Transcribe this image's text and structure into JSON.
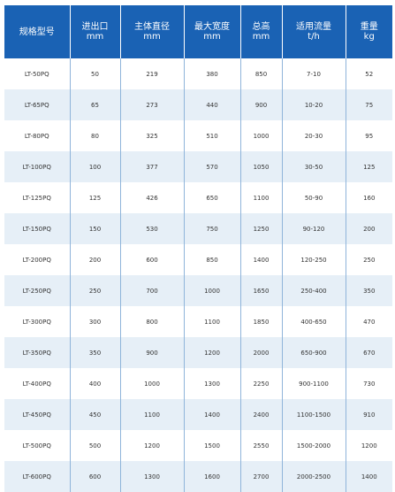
{
  "table": {
    "headers": [
      {
        "line1": "规格型号",
        "line2": ""
      },
      {
        "line1": "进出口",
        "line2": "mm"
      },
      {
        "line1": "主体直径",
        "line2": "mm"
      },
      {
        "line1": "最大宽度",
        "line2": "mm"
      },
      {
        "line1": "总高",
        "line2": "mm"
      },
      {
        "line1": "适用流量",
        "line2": "t/h"
      },
      {
        "line1": "重量",
        "line2": "kg"
      }
    ],
    "rows": [
      [
        "LT-50PQ",
        "50",
        "219",
        "380",
        "850",
        "7-10",
        "52"
      ],
      [
        "LT-65PQ",
        "65",
        "273",
        "440",
        "900",
        "10-20",
        "75"
      ],
      [
        "LT-80PQ",
        "80",
        "325",
        "510",
        "1000",
        "20-30",
        "95"
      ],
      [
        "LT-100PQ",
        "100",
        "377",
        "570",
        "1050",
        "30-50",
        "125"
      ],
      [
        "LT-125PQ",
        "125",
        "426",
        "650",
        "1100",
        "50-90",
        "160"
      ],
      [
        "LT-150PQ",
        "150",
        "530",
        "750",
        "1250",
        "90-120",
        "200"
      ],
      [
        "LT-200PQ",
        "200",
        "600",
        "850",
        "1400",
        "120-250",
        "250"
      ],
      [
        "LT-250PQ",
        "250",
        "700",
        "1000",
        "1650",
        "250-400",
        "350"
      ],
      [
        "LT-300PQ",
        "300",
        "800",
        "1100",
        "1850",
        "400-650",
        "470"
      ],
      [
        "LT-350PQ",
        "350",
        "900",
        "1200",
        "2000",
        "650-900",
        "670"
      ],
      [
        "LT-400PQ",
        "400",
        "1000",
        "1300",
        "2250",
        "900-1100",
        "730"
      ],
      [
        "LT-450PQ",
        "450",
        "1100",
        "1400",
        "2400",
        "1100-1500",
        "910"
      ],
      [
        "LT-500PQ",
        "500",
        "1200",
        "1500",
        "2550",
        "1500-2000",
        "1200"
      ],
      [
        "LT-600PQ",
        "600",
        "1300",
        "1600",
        "2700",
        "2000-2500",
        "1400"
      ]
    ]
  },
  "colors": {
    "header_bg": "#1a62b4",
    "header_text": "#ffffff",
    "row_alt_bg": "#e6eff7",
    "row_bg": "#ffffff",
    "divider": "#8fb4da"
  }
}
